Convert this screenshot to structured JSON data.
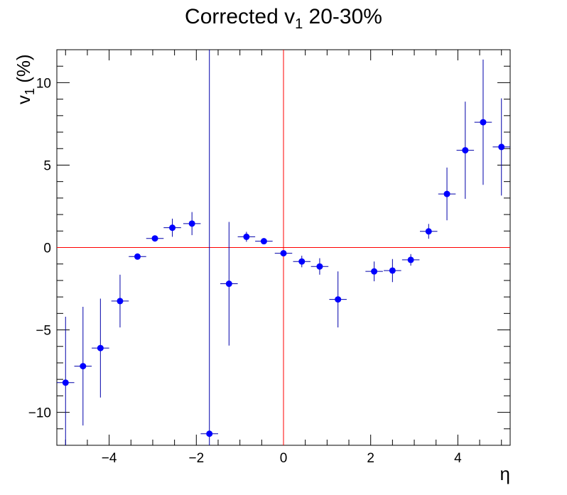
{
  "chart_data": {
    "type": "scatter",
    "title_main": "Corrected v",
    "title_sub": "1",
    "title_rest": " 20-30%",
    "ylabel_main": "v",
    "ylabel_sub": "1",
    "ylabel_rest": " (%)",
    "xlabel": "η",
    "xlim": [
      -5.2,
      5.2
    ],
    "ylim": [
      -12,
      12
    ],
    "x_ticks": [
      -4,
      -2,
      0,
      2,
      4
    ],
    "x_tick_labels": [
      "−4",
      "−2",
      "0",
      "2",
      "4"
    ],
    "y_ticks": [
      -10,
      -5,
      0,
      5,
      10
    ],
    "y_tick_labels": [
      "−10",
      "−5",
      "0",
      "5",
      "10"
    ],
    "reference_lines": {
      "x": 0,
      "y": 0,
      "color": "#ff0000"
    },
    "marker_color": "#0000ff",
    "errorbar_color": "#0000aa",
    "points": [
      {
        "x": -5.0,
        "y": -8.2,
        "yerr": 4.0,
        "xerr": 0.2
      },
      {
        "x": -4.6,
        "y": -7.2,
        "yerr": 3.6,
        "xerr": 0.2
      },
      {
        "x": -4.2,
        "y": -6.1,
        "yerr": 3.0,
        "xerr": 0.2
      },
      {
        "x": -3.75,
        "y": -3.25,
        "yerr": 1.6,
        "xerr": 0.2
      },
      {
        "x": -3.35,
        "y": -0.55,
        "yerr": 0.15,
        "xerr": 0.2
      },
      {
        "x": -2.95,
        "y": 0.55,
        "yerr": 0.15,
        "xerr": 0.2
      },
      {
        "x": -2.55,
        "y": 1.2,
        "yerr": 0.55,
        "xerr": 0.2
      },
      {
        "x": -2.1,
        "y": 1.45,
        "yerr": 0.7,
        "xerr": 0.2
      },
      {
        "x": -1.7,
        "y": -11.3,
        "yerr": 23.3,
        "xerr": 0.2
      },
      {
        "x": -1.25,
        "y": -2.2,
        "yerr": 3.75,
        "xerr": 0.2
      },
      {
        "x": -0.85,
        "y": 0.65,
        "yerr": 0.3,
        "xerr": 0.2
      },
      {
        "x": -0.45,
        "y": 0.38,
        "yerr": 0.1,
        "xerr": 0.2
      },
      {
        "x": 0.0,
        "y": -0.35,
        "yerr": 0.15,
        "xerr": 0.2
      },
      {
        "x": 0.42,
        "y": -0.85,
        "yerr": 0.35,
        "xerr": 0.2
      },
      {
        "x": 0.83,
        "y": -1.15,
        "yerr": 0.5,
        "xerr": 0.2
      },
      {
        "x": 1.25,
        "y": -3.15,
        "yerr": 1.7,
        "xerr": 0.2
      },
      {
        "x": 2.08,
        "y": -1.45,
        "yerr": 0.6,
        "xerr": 0.2
      },
      {
        "x": 2.5,
        "y": -1.4,
        "yerr": 0.7,
        "xerr": 0.2
      },
      {
        "x": 2.92,
        "y": -0.75,
        "yerr": 0.35,
        "xerr": 0.2
      },
      {
        "x": 3.33,
        "y": 0.98,
        "yerr": 0.45,
        "xerr": 0.2
      },
      {
        "x": 3.75,
        "y": 3.25,
        "yerr": 1.6,
        "xerr": 0.2
      },
      {
        "x": 4.17,
        "y": 5.9,
        "yerr": 2.95,
        "xerr": 0.2
      },
      {
        "x": 4.58,
        "y": 7.6,
        "yerr": 3.8,
        "xerr": 0.2
      },
      {
        "x": 5.0,
        "y": 6.1,
        "yerr": 2.95,
        "xerr": 0.2
      }
    ]
  }
}
